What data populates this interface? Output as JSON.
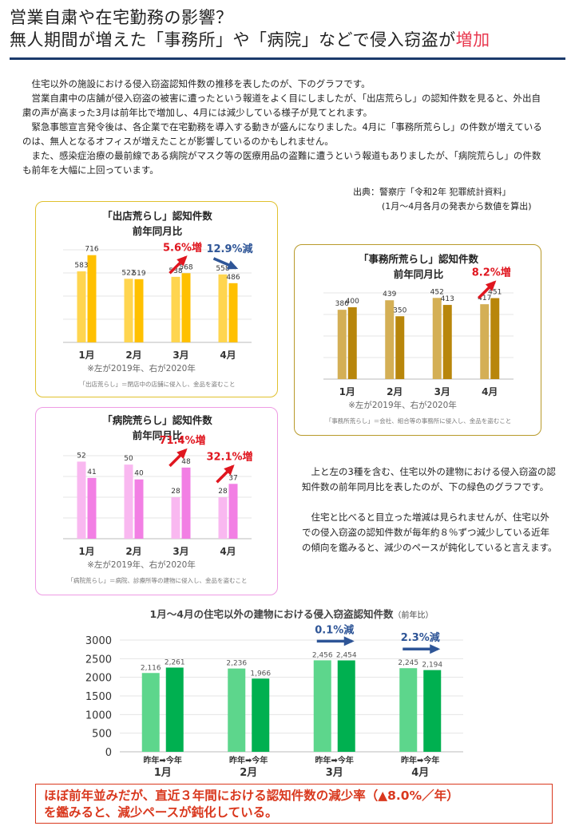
{
  "title": {
    "line1": "営業自粛や在宅勤務の影響？",
    "line2_prefix": "無人期間が増えた「事務所」や「病院」などで侵入窃盗が",
    "line2_highlight": "増加"
  },
  "intro": {
    "paragraphs": [
      "住宅以外の施設における侵入窃盗認知件数の推移を表したのが、下のグラフです。",
      "営業自粛中の店舗が侵入窃盗の被害に遭ったという報道をよく目にしましたが、「出店荒らし」の認知件数を見ると、外出自粛の声が高まった3月は前年比で増加し、4月には減少している様子が見てとれます。",
      "緊急事態宣言発令後は、各企業で在宅勤務を導入する動きが盛んになりました。4月に「事務所荒らし」の件数が増えているのは、無人となるオフィスが増えたことが影響しているのかもしれません。",
      "また、感染症治療の最前線である病院がマスク等の医療用品の盗難に遭うという報道もありましたが、「病院荒らし」の件数も前年を大幅に上回っています。"
    ]
  },
  "source": {
    "line1": "出典：警察庁「令和2年 犯罪統計資料」",
    "line2": "(1月～4月各月の発表から数値を算出)"
  },
  "side_text": {
    "paragraphs": [
      "上と左の3種を含む、住宅以外の建物における侵入窃盗の認知件数の前年同月比を表したのが、下の緑色のグラフです。",
      "住宅と比べると目立った増減は見られませんが、住宅以外での侵入窃盗の認知件数が毎年約８％ずつ減少している近年の傾向を鑑みると、減少のペースが鈍化していると言えます。"
    ]
  },
  "conclusion": {
    "line1": "ほぼ前年並みだが、直近３年間における認知件数の減少率（▲8.0%／年）",
    "line2": "を鑑みると、減少ペースが鈍化している。"
  },
  "colors": {
    "store_2019": "#ffd54f",
    "store_2020": "#ffc000",
    "office_2019": "#d4af55",
    "office_2020": "#b8860b",
    "hospital_2019": "#f9b8f0",
    "hospital_2020": "#f27fe4",
    "total_2019": "#5dd68c",
    "total_2020": "#00b050",
    "increase": "#e0161f",
    "decrease": "#2e5597",
    "store_border": "#e0c12e",
    "office_border": "#b89a2a",
    "hospital_border": "#ee9be3"
  },
  "chart_data": [
    {
      "id": "store",
      "type": "bar",
      "title": "「出店荒らし」認知件数",
      "subtitle": "前年同月比",
      "categories": [
        "1月",
        "2月",
        "3月",
        "4月"
      ],
      "series": [
        {
          "name": "2019年",
          "values": [
            583,
            522,
            538,
            558
          ]
        },
        {
          "name": "2020年",
          "values": [
            716,
            519,
            568,
            486
          ]
        }
      ],
      "ylim": [
        0,
        760
      ],
      "legend_note": "※左が2019年、右が2020年",
      "footnote": "「出店荒らし」＝閉店中の店舗に侵入し、金品を盗むこと",
      "annotations": [
        {
          "text": "5.6%増",
          "month_index": 2,
          "direction": "up"
        },
        {
          "text": "12.9%減",
          "month_index": 3,
          "direction": "down"
        }
      ]
    },
    {
      "id": "office",
      "type": "bar",
      "title": "「事務所荒らし」認知件数",
      "subtitle": "前年同月比",
      "categories": [
        "1月",
        "2月",
        "3月",
        "4月"
      ],
      "series": [
        {
          "name": "2019年",
          "values": [
            386,
            439,
            452,
            417
          ]
        },
        {
          "name": "2020年",
          "values": [
            400,
            350,
            413,
            451
          ]
        }
      ],
      "ylim": [
        0,
        480
      ],
      "legend_note": "※左が2019年、右が2020年",
      "footnote": "「事務所荒らし」＝会社、組合等の事務所に侵入し、金品を盗むこと",
      "annotations": [
        {
          "text": "8.2%増",
          "month_index": 3,
          "direction": "up"
        }
      ]
    },
    {
      "id": "hospital",
      "type": "bar",
      "title": "「病院荒らし」認知件数",
      "subtitle": "前年同月比",
      "categories": [
        "1月",
        "2月",
        "3月",
        "4月"
      ],
      "series": [
        {
          "name": "2019年",
          "values": [
            52,
            50,
            28,
            28
          ]
        },
        {
          "name": "2020年",
          "values": [
            41,
            40,
            48,
            37
          ]
        }
      ],
      "ylim": [
        0,
        56
      ],
      "legend_note": "※左が2019年、右が2020年",
      "footnote": "「病院荒らし」＝病院、診療所等の建物に侵入し、金品を盗むこと",
      "annotations": [
        {
          "text": "71.4%増",
          "month_index": 2,
          "direction": "up"
        },
        {
          "text": "32.1%増",
          "month_index": 3,
          "direction": "up"
        }
      ]
    },
    {
      "id": "total",
      "type": "bar",
      "title": "1月～4月の住宅以外の建物における侵入窃盗認知件数",
      "title_suffix": "（前年比）",
      "categories": [
        "1月",
        "2月",
        "3月",
        "4月"
      ],
      "series": [
        {
          "name": "昨年",
          "values": [
            2116,
            2236,
            2456,
            2245
          ]
        },
        {
          "name": "今年",
          "values": [
            2261,
            1966,
            2454,
            2194
          ]
        }
      ],
      "value_labels": [
        [
          "2,116",
          "2,236",
          "2,456",
          "2,245"
        ],
        [
          "2,261",
          "1,966",
          "2,454",
          "2,194"
        ]
      ],
      "ylim": [
        0,
        3000
      ],
      "yticks": [
        0,
        500,
        1000,
        1500,
        2000,
        2500,
        3000
      ],
      "category_sublabel": "昨年➡今年",
      "annotations": [
        {
          "text": "0.1%減",
          "month_index": 2,
          "direction": "flat"
        },
        {
          "text": "2.3%減",
          "month_index": 3,
          "direction": "flat"
        }
      ]
    }
  ]
}
